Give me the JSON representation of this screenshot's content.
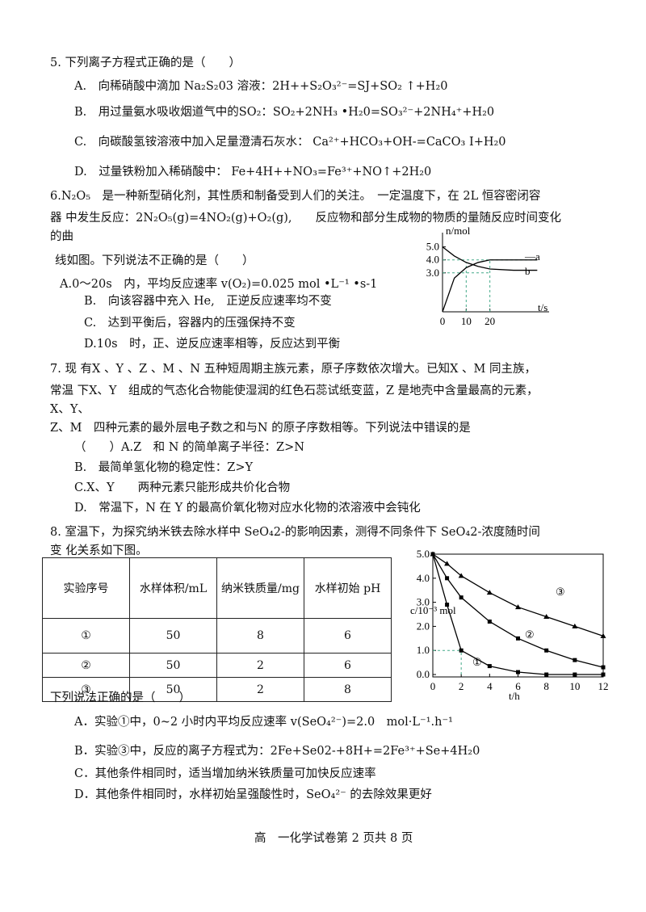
{
  "q5": {
    "stem": "5.  下列离子方程式正确的是（　　）",
    "options": [
      "A.　向稀硝酸中滴加 Na₂S₂03 溶液：2H++S₂O₃²⁻=SJ+SO₂ ↑+H₂0",
      "B.　用过量氨水吸收烟道气中的SO₂：SO₂+2NH₃ •H₂0=SO₃²⁻+2NH₄⁺+H₂0",
      "C.　向碳酸氢铵溶液中加入足量澄清石灰水： Ca²⁺+HCO₃+OH-=CaCO₃ I+H₂0",
      "D.　过量铁粉加入稀硝酸中： Fe+4H++NO₃=Fe³⁺+NO↑+2H₂0"
    ]
  },
  "q6": {
    "lines": [
      "6.N₂O₅　是一种新型硝化剂，其性质和制备受到人们的关注。　一定温度下，在 2L 恒容密闭容",
      "器 中发生反应：2N₂O₅(g)=4NO₂(g)+O₂(g),　　反应物和部分生成物的物质的量随反应时间变化",
      "的曲",
      "线如图。下列说法不正确的是（　　）"
    ],
    "options": [
      "A.0～20s　内，平均反应速率 v(O₂)=0.025 mol •L⁻¹ •s-1",
      "B.　向该容器中充入 He,　正逆反应速率均不变",
      "C.　达到平衡后，容器内的压强保持不变",
      "D.10s　时，正、逆反应速率相等，反应达到平衡"
    ],
    "figure": {
      "type": "line",
      "y_label": "n/mol",
      "x_label": "t/s",
      "xlim": [
        0,
        45
      ],
      "ylim": [
        0,
        5.6
      ],
      "xticks": [
        0,
        10,
        20
      ],
      "yticks": [
        {
          "value": 3,
          "label": "3.0"
        },
        {
          "value": 4,
          "label": "4.0"
        },
        {
          "value": 5,
          "label": "5.0"
        }
      ],
      "x": [
        0,
        5,
        10,
        15,
        20,
        30,
        40
      ],
      "series": [
        {
          "name": "—a",
          "color": "#000",
          "values": [
            5.0,
            4.3,
            3.8,
            3.5,
            3.3,
            3.2,
            3.2
          ]
        },
        {
          "name": "b",
          "color": "#000",
          "values": [
            0,
            2.6,
            3.4,
            3.8,
            4.0,
            4.0,
            4.0
          ]
        }
      ]
    }
  },
  "q7": {
    "lines": [
      "7. 现 有X 、Y 、Z 、M 、N 五种短周期主族元素，原子序数依次增大。已知X 、M 同主族，",
      "常温 下X、Y　组成的气态化合物能使湿润的红色石蕊试纸变蓝，Z 是地壳中含量最高的元素，",
      "X、Y、",
      "Z、M　四种元素的最外层电子数之和与N 的原子序数相等。下列说法中错误的是",
      "（　　）A.Z　和 N 的简单离子半径：Z>N"
    ],
    "options": [
      "B.　最简单氢化物的稳定性：Z>Y",
      "C.X、Y　　两种元素只能形成共价化合物",
      "D.　常温下，N 在 Y 的最高价氧化物对应水化物的浓溶液中会钝化"
    ]
  },
  "q8": {
    "lines": [
      "8.  室温下，为探究纳米铁去除水样中 SeO₄2-的影响因素，测得不同条件下 SeO₄2-浓度随时间",
      "变 化关系如下图。"
    ],
    "table": {
      "header": [
        "实验序号",
        "水样体积/mL",
        "纳米铁质量/mg",
        "水样初始 pH"
      ],
      "rows": [
        [
          "①",
          "50",
          "8",
          "6"
        ],
        [
          "②",
          "50",
          "2",
          "6"
        ],
        [
          "③",
          "50",
          "2",
          "8"
        ]
      ]
    },
    "ask": "下列说法正确的是（　　）",
    "options": [
      "A．实验①中，0~2 小时内平均反应速率 v(SeO₄²⁻)=2.0　mol·L⁻¹.h⁻¹",
      "B．实验③中，反应的离子方程式为：2Fe+Se02-+8H+=2Fe³⁺+Se+4H₂0",
      "C．其他条件相同时，适当增加纳米铁质量可加快反应速率",
      "D．其他条件相同时，水样初始呈强酸性时，SeO₄²⁻ 的去除效果更好"
    ],
    "figure": {
      "type": "line",
      "y_label": "c/10⁻³ mol",
      "x_label": "t/h",
      "xlim": [
        0,
        12
      ],
      "ylim": [
        -0.1,
        5.0
      ],
      "xticks": [
        0,
        2,
        4,
        6,
        8,
        10,
        12
      ],
      "yticks": [
        {
          "value": 0,
          "label": "0.0"
        },
        {
          "value": 1,
          "label": "1.0"
        },
        {
          "value": 2,
          "label": "2.0"
        },
        {
          "value": 3,
          "label": "3.0"
        },
        {
          "value": 4,
          "label": "4.0"
        },
        {
          "value": 5,
          "label": "5.0"
        }
      ],
      "x": [
        0,
        1,
        2,
        4,
        6,
        8,
        10,
        12
      ],
      "series": [
        {
          "name": "①",
          "color": "#000",
          "marker": "square",
          "values": [
            5.0,
            2.9,
            1.0,
            0.35,
            0.1,
            0.0,
            0.0,
            0.0
          ]
        },
        {
          "name": "②",
          "color": "#000",
          "marker": "square",
          "values": [
            5.0,
            4.0,
            3.2,
            2.2,
            1.5,
            1.0,
            0.6,
            0.3
          ]
        },
        {
          "name": "③",
          "color": "#000",
          "marker": "triangle",
          "values": [
            5.0,
            4.6,
            4.1,
            3.4,
            2.8,
            2.4,
            2.0,
            1.6
          ]
        }
      ]
    }
  },
  "footer": "高　一化学试卷第 2 页共 8 页"
}
